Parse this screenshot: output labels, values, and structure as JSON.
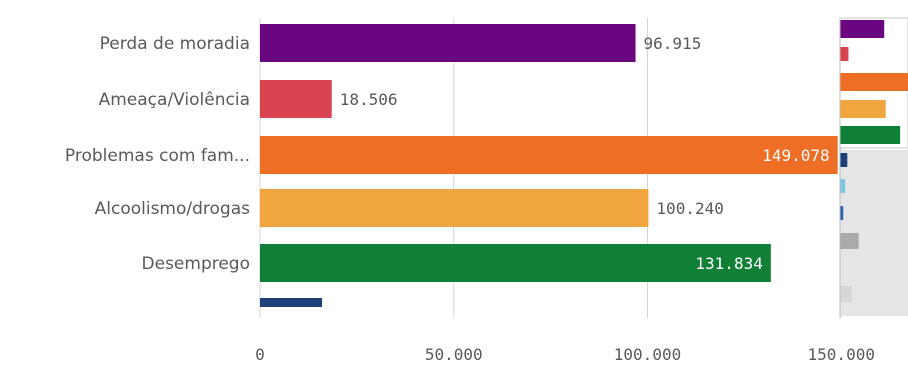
{
  "chart_data": {
    "type": "bar",
    "orientation": "horizontal",
    "categories": [
      "Perda de moradia",
      "Ameaça/Violência",
      "Problemas com fam...",
      "Alcoolismo/drogas",
      "Desemprego"
    ],
    "values": [
      96915,
      18506,
      149078,
      100240,
      131834
    ],
    "value_labels": [
      "96.915",
      "18.506",
      "149.078",
      "100.240",
      "131.834"
    ],
    "bar_colors": [
      "#6a0680",
      "#d9424f",
      "#ee6e25",
      "#f0a53f",
      "#108037"
    ],
    "partial_bar": {
      "value": 16000,
      "color": "#1f3f7a"
    },
    "xlim": [
      0,
      150000
    ],
    "x_ticks": [
      0,
      50000,
      100000,
      150000
    ],
    "x_tick_labels": [
      "0",
      "50.000",
      "100.000",
      "150.000"
    ],
    "grid": true,
    "label_colors": {
      "outside": "#595959",
      "inside": "#ffffff"
    }
  },
  "minimap": {
    "bars": [
      {
        "value": 96915,
        "color": "#6a0680"
      },
      {
        "value": 18506,
        "color": "#d9424f"
      },
      {
        "value": 149078,
        "color": "#ee6e25"
      },
      {
        "value": 100240,
        "color": "#f0a53f"
      },
      {
        "value": 131834,
        "color": "#108037"
      },
      {
        "value": 16000,
        "color": "#1f3f7a"
      },
      {
        "value": 11000,
        "color": "#7ac8e6"
      },
      {
        "value": 7000,
        "color": "#2e5fb0"
      },
      {
        "value": 41000,
        "color": "#aaaaaa"
      },
      {
        "value": 26000,
        "color": "#d7d7d7"
      }
    ],
    "highlight_color": "#e5e5e5",
    "max_value": 149078
  }
}
